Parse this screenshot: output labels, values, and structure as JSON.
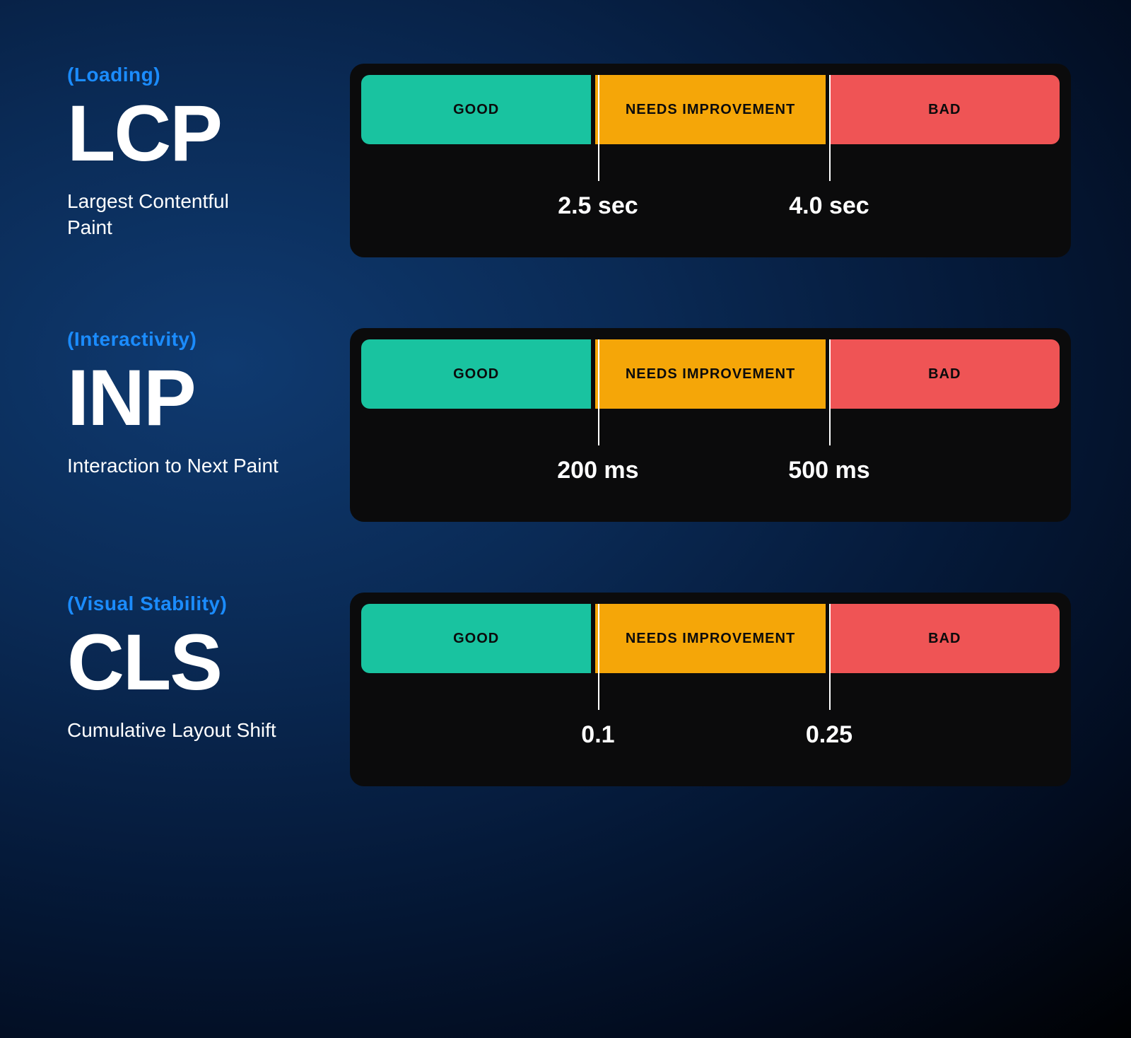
{
  "background": {
    "gradient_center": "#0f3a70",
    "gradient_mid": "#051a3a",
    "gradient_edge": "#000000"
  },
  "colors": {
    "category": "#1b8cff",
    "text": "#ffffff",
    "card_bg": "#0b0b0c",
    "good": "#19c3a0",
    "needs": "#f5a608",
    "bad": "#ef5455",
    "tick": "#ffffff"
  },
  "segment_labels": {
    "good": "GOOD",
    "needs": "NEEDS IMPROVEMENT",
    "bad": "BAD"
  },
  "thresholds_pct": {
    "first": 33.9,
    "second": 67.0
  },
  "metrics": [
    {
      "id": "lcp",
      "category": "(Loading)",
      "abbr": "LCP",
      "fullname": "Largest Contentful Paint",
      "threshold1": "2.5 sec",
      "threshold2": "4.0 sec"
    },
    {
      "id": "inp",
      "category": "(Interactivity)",
      "abbr": "INP",
      "fullname": "Interaction to Next Paint",
      "threshold1": "200 ms",
      "threshold2": "500 ms"
    },
    {
      "id": "cls",
      "category": "(Visual Stability)",
      "abbr": "CLS",
      "fullname": "Cumulative Layout Shift",
      "threshold1": "0.1",
      "threshold2": "0.25"
    }
  ]
}
